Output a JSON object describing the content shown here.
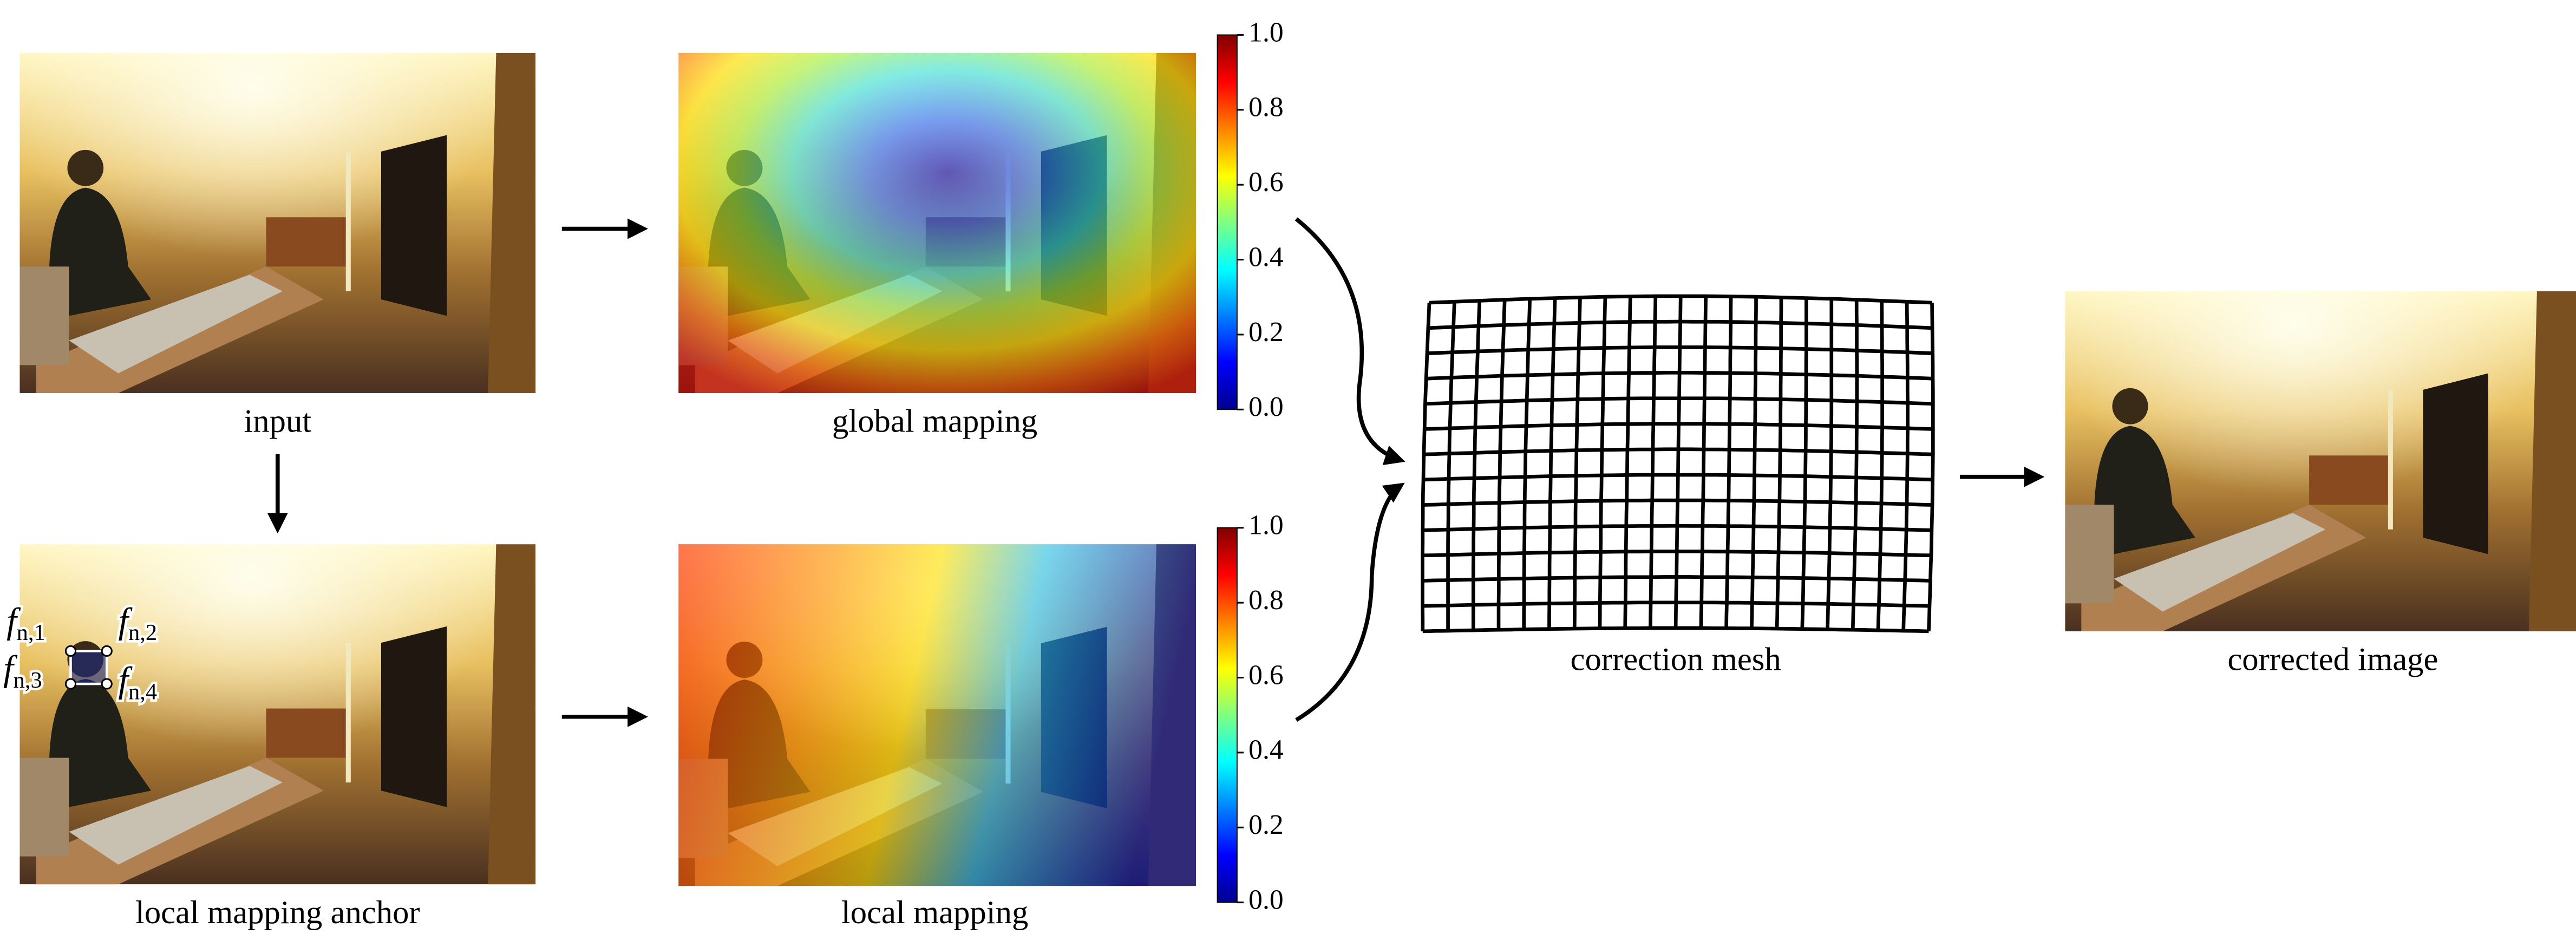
{
  "panels": {
    "input": {
      "label": "input"
    },
    "anchor": {
      "label": "local mapping anchor",
      "anchors": [
        {
          "base": "f",
          "sub": "n,1"
        },
        {
          "base": "f",
          "sub": "n,2"
        },
        {
          "base": "f",
          "sub": "n,3"
        },
        {
          "base": "f",
          "sub": "n,4"
        }
      ]
    },
    "global": {
      "label": "global mapping",
      "colorbar": [
        "0.0",
        "0.2",
        "0.4",
        "0.6",
        "0.8",
        "1.0"
      ]
    },
    "local": {
      "label": "local mapping",
      "colorbar": [
        "0.0",
        "0.2",
        "0.4",
        "0.6",
        "0.8",
        "1.0"
      ]
    },
    "mesh": {
      "label": "correction mesh"
    },
    "output": {
      "label": "corrected image"
    }
  }
}
